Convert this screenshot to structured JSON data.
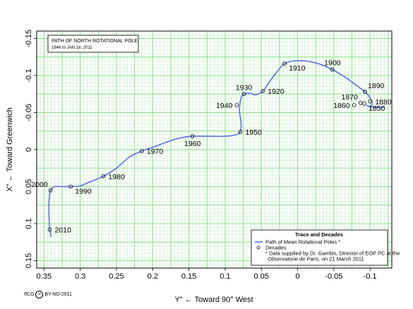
{
  "chart_data": {
    "type": "line",
    "title": "PATH OF NORTH ROTATIONAL POLE",
    "subtitle": "1846 to JAN 18, 2011",
    "xlabel": "Y\" ← Toward 90° West",
    "ylabel": "X\" ← Toward Greenwich",
    "xlim": [
      0.36,
      -0.13
    ],
    "ylim": [
      0.16,
      -0.16
    ],
    "x_ticks": [
      "0.35",
      "0.3",
      "0.25",
      "0.2",
      "0.15",
      "0.1",
      "0.05",
      "0",
      "-0.05",
      "-0.1"
    ],
    "y_ticks": [
      "-0.15",
      "-0.1",
      "-0.05",
      "0",
      "0.05",
      "0.1",
      "0.15"
    ],
    "grid": true,
    "series": [
      {
        "name": "Path of Mean Rotational Poles *",
        "color": "#5b6fe0",
        "path": [
          [
            0.34,
            0.118
          ],
          [
            0.342,
            0.108
          ],
          [
            0.343,
            0.09
          ],
          [
            0.343,
            0.07
          ],
          [
            0.341,
            0.055
          ],
          [
            0.335,
            0.05
          ],
          [
            0.326,
            0.05
          ],
          [
            0.313,
            0.05
          ],
          [
            0.3,
            0.049
          ],
          [
            0.285,
            0.043
          ],
          [
            0.268,
            0.036
          ],
          [
            0.25,
            0.025
          ],
          [
            0.232,
            0.01
          ],
          [
            0.215,
            0.002
          ],
          [
            0.197,
            -0.004
          ],
          [
            0.178,
            -0.011
          ],
          [
            0.16,
            -0.016
          ],
          [
            0.145,
            -0.018
          ],
          [
            0.125,
            -0.018
          ],
          [
            0.1,
            -0.018
          ],
          [
            0.085,
            -0.02
          ],
          [
            0.079,
            -0.024
          ],
          [
            0.078,
            -0.035
          ],
          [
            0.08,
            -0.05
          ],
          [
            0.08,
            -0.058
          ],
          [
            0.078,
            -0.07
          ],
          [
            0.074,
            -0.075
          ],
          [
            0.066,
            -0.076
          ],
          [
            0.058,
            -0.074
          ],
          [
            0.048,
            -0.079
          ],
          [
            0.04,
            -0.09
          ],
          [
            0.03,
            -0.103
          ],
          [
            0.018,
            -0.116
          ],
          [
            0.0,
            -0.12
          ],
          [
            -0.025,
            -0.117
          ],
          [
            -0.048,
            -0.108
          ],
          [
            -0.068,
            -0.096
          ],
          [
            -0.082,
            -0.086
          ],
          [
            -0.093,
            -0.078
          ],
          [
            -0.1,
            -0.07
          ],
          [
            -0.103,
            -0.062
          ],
          [
            -0.1,
            -0.058
          ],
          [
            -0.095,
            -0.06
          ],
          [
            -0.1,
            -0.058
          ],
          [
            -0.11,
            -0.057
          ],
          [
            -0.12,
            -0.057
          ]
        ]
      }
    ],
    "decades": [
      {
        "label": "2010",
        "x": 0.342,
        "y": 0.108,
        "anchor": "right"
      },
      {
        "label": "2000",
        "x": 0.341,
        "y": 0.055,
        "anchor": "upleft"
      },
      {
        "label": "1990",
        "x": 0.313,
        "y": 0.05,
        "anchor": "downright"
      },
      {
        "label": "1980",
        "x": 0.268,
        "y": 0.036,
        "anchor": "right"
      },
      {
        "label": "1970",
        "x": 0.215,
        "y": 0.002,
        "anchor": "right"
      },
      {
        "label": "1960",
        "x": 0.145,
        "y": -0.018,
        "anchor": "below"
      },
      {
        "label": "1950",
        "x": 0.079,
        "y": -0.024,
        "anchor": "right"
      },
      {
        "label": "1940",
        "x": 0.084,
        "y": -0.06,
        "anchor": "left"
      },
      {
        "label": "1930",
        "x": 0.074,
        "y": -0.075,
        "anchor": "above"
      },
      {
        "label": "1920",
        "x": 0.048,
        "y": -0.079,
        "anchor": "right"
      },
      {
        "label": "1910",
        "x": 0.018,
        "y": -0.116,
        "anchor": "downright"
      },
      {
        "label": "1900",
        "x": -0.048,
        "y": -0.108,
        "anchor": "above"
      },
      {
        "label": "1890",
        "x": -0.093,
        "y": -0.078,
        "anchor": "upright"
      },
      {
        "label": "1880",
        "x": -0.1,
        "y": -0.065,
        "anchor": "right"
      },
      {
        "label": "1870",
        "x": -0.087,
        "y": -0.063,
        "anchor": "upleft"
      },
      {
        "label": "1860",
        "x": -0.078,
        "y": -0.06,
        "anchor": "left"
      },
      {
        "label": "1850",
        "x": -0.092,
        "y": -0.062,
        "anchor": "downright"
      }
    ],
    "legend": {
      "title": "Trace and Decades",
      "line_label": "Path of Mean Rotational Poles *",
      "marker_label": "Decades",
      "note_1": "* Data supplied by Dr. Gambis, Director of EOP PC at the",
      "note_2_italic": "Observatorie de Paris",
      "note_2_rest": ", on 21 March 2011",
      "position": "bottom-right"
    },
    "colors": {
      "grid_major": "#7fe07f",
      "grid_minor": "#c2f2c2",
      "line": "#5b6fe0"
    }
  },
  "credit": {
    "org": "IfCG",
    "cc_mark": "cc",
    "license": "BY-ND-2011"
  }
}
